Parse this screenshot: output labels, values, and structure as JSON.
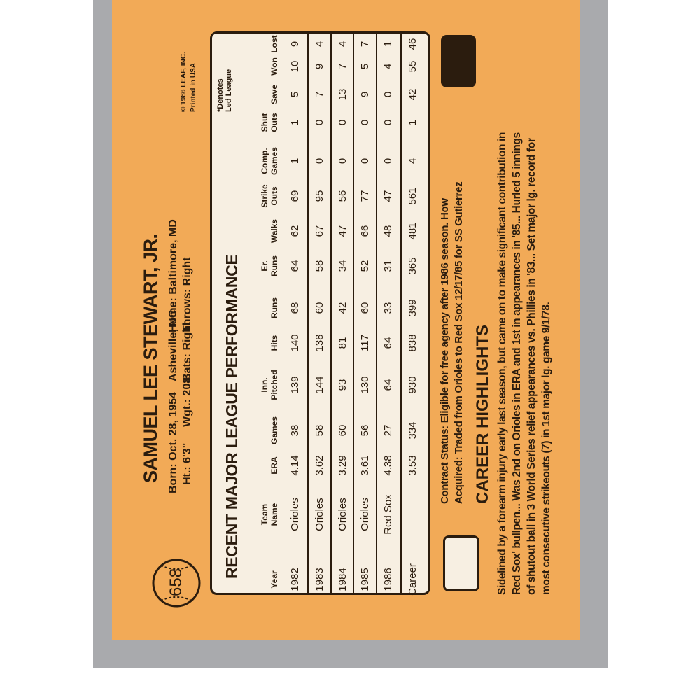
{
  "card": {
    "number": "658",
    "name": "SAMUEL LEE STEWART, JR.",
    "bio": [
      "Born: Oct. 28, 1954",
      "Asheville, NC",
      "Home: Baltimore, MD"
    ],
    "bio2": [
      "Ht.: 6'3\"",
      "Wgt.: 208",
      "Bats: Right",
      "Throws: Right"
    ],
    "copyright": [
      "© 1986 LEAF, INC.",
      "Printed in USA"
    ],
    "footnote": [
      "*Denotes",
      "Led League"
    ]
  },
  "table": {
    "title": "RECENT MAJOR LEAGUE PERFORMANCE",
    "headers": [
      [
        "Year"
      ],
      [
        "Team",
        "Name"
      ],
      [
        "ERA"
      ],
      [
        "Games"
      ],
      [
        "Inn.",
        "Pitched"
      ],
      [
        "Hits"
      ],
      [
        "Runs"
      ],
      [
        "Er.",
        "Runs"
      ],
      [
        "Walks"
      ],
      [
        "Strike",
        "Outs"
      ],
      [
        "Comp.",
        "Games"
      ],
      [
        "Shut",
        "Outs"
      ],
      [
        "Save"
      ],
      [
        "Won"
      ],
      [
        "Lost"
      ]
    ],
    "rows": [
      [
        "1982",
        "Orioles",
        "4.14",
        "38",
        "139",
        "140",
        "68",
        "64",
        "62",
        "69",
        "1",
        "1",
        "5",
        "10",
        "9"
      ],
      [
        "1983",
        "Orioles",
        "3.62",
        "58",
        "144",
        "138",
        "60",
        "58",
        "67",
        "95",
        "0",
        "0",
        "7",
        "9",
        "4"
      ],
      [
        "1984",
        "Orioles",
        "3.29",
        "60",
        "93",
        "81",
        "42",
        "34",
        "47",
        "56",
        "0",
        "0",
        "13",
        "7",
        "4"
      ],
      [
        "1985",
        "Orioles",
        "3.61",
        "56",
        "130",
        "117",
        "60",
        "52",
        "66",
        "77",
        "0",
        "0",
        "9",
        "5",
        "7"
      ],
      [
        "1986",
        "Red Sox",
        "4.38",
        "27",
        "64",
        "64",
        "33",
        "31",
        "48",
        "47",
        "0",
        "0",
        "0",
        "4",
        "1"
      ],
      [
        "Career",
        null,
        "3.53",
        "334",
        "930",
        "838",
        "399",
        "365",
        "481",
        "561",
        "4",
        "1",
        "42",
        "55",
        "46"
      ]
    ]
  },
  "contract": [
    "Contract Status: Eligible for free agency after 1986 season. How",
    "Acquired: Traded from Orioles to Red Sox 12/17/85 for SS Gutierrez"
  ],
  "highlights": {
    "title": "CAREER HIGHLIGHTS",
    "lines": [
      "Sidelined by a forearm injury early last season, but came on to make significant contribution in",
      "Red Sox' bullpen... Was 2nd on Orioles in ERA and 1st in appearances in '85... Hurled 5 innings",
      "of shutout ball in 3 World Series relief appearances vs. Phillies in '83... Set major lg. record for",
      "most consecutive strikeouts (7) in 1st major lg. game 9/1/78."
    ]
  }
}
